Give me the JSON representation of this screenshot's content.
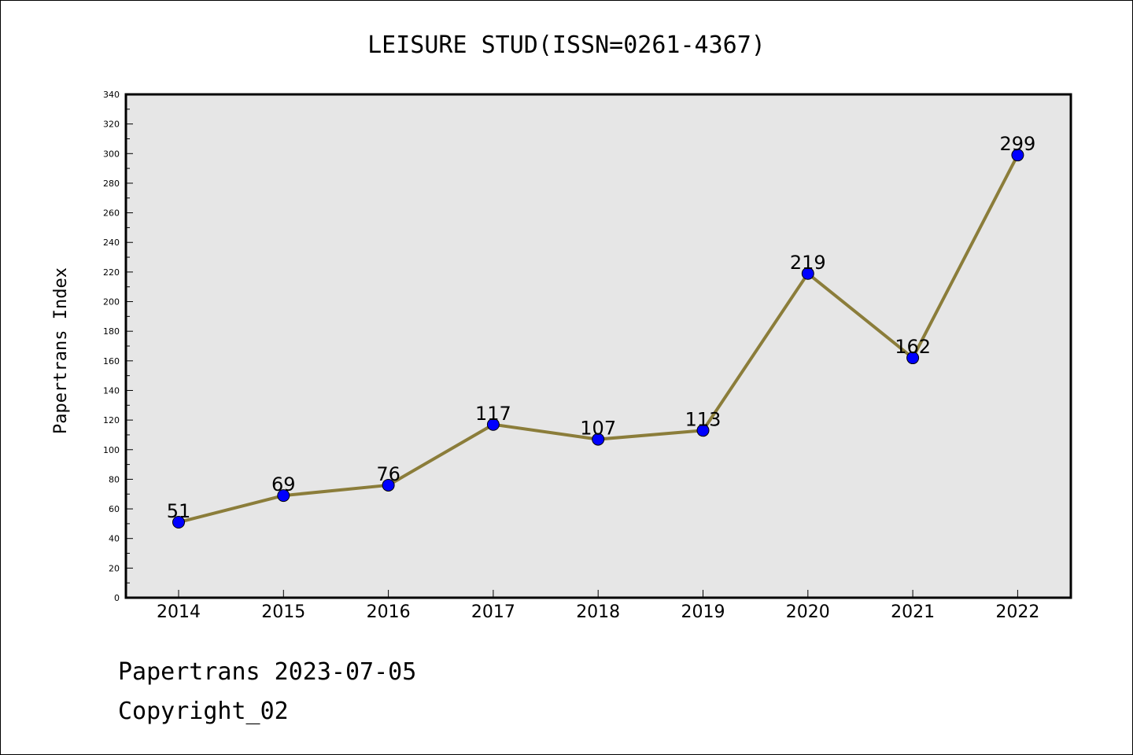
{
  "chart_data": {
    "type": "line",
    "title": "LEISURE STUD(ISSN=0261-4367)",
    "xlabel": "",
    "ylabel": "Papertrans Index",
    "categories": [
      "2014",
      "2015",
      "2016",
      "2017",
      "2018",
      "2019",
      "2020",
      "2021",
      "2022"
    ],
    "series": [
      {
        "values": [
          51,
          69,
          76,
          117,
          107,
          113,
          219,
          162,
          299
        ]
      }
    ],
    "data_labels": [
      "51",
      "69",
      "76",
      "117",
      "107",
      "113",
      "219",
      "162",
      "299"
    ],
    "ylim": [
      0,
      340
    ],
    "yticks": [
      "0",
      "20",
      "40",
      "60",
      "80",
      "100",
      "120",
      "140",
      "160",
      "180",
      "200",
      "220",
      "240",
      "260",
      "280",
      "300",
      "320",
      "340"
    ],
    "grid": false,
    "legend": "none",
    "colors": {
      "line": "#8b7d3a",
      "marker": "#0000ff",
      "plot_background": "#e6e6e6"
    }
  },
  "footer": {
    "line1": "Papertrans 2023-07-05",
    "line2": "Copyright_02"
  }
}
